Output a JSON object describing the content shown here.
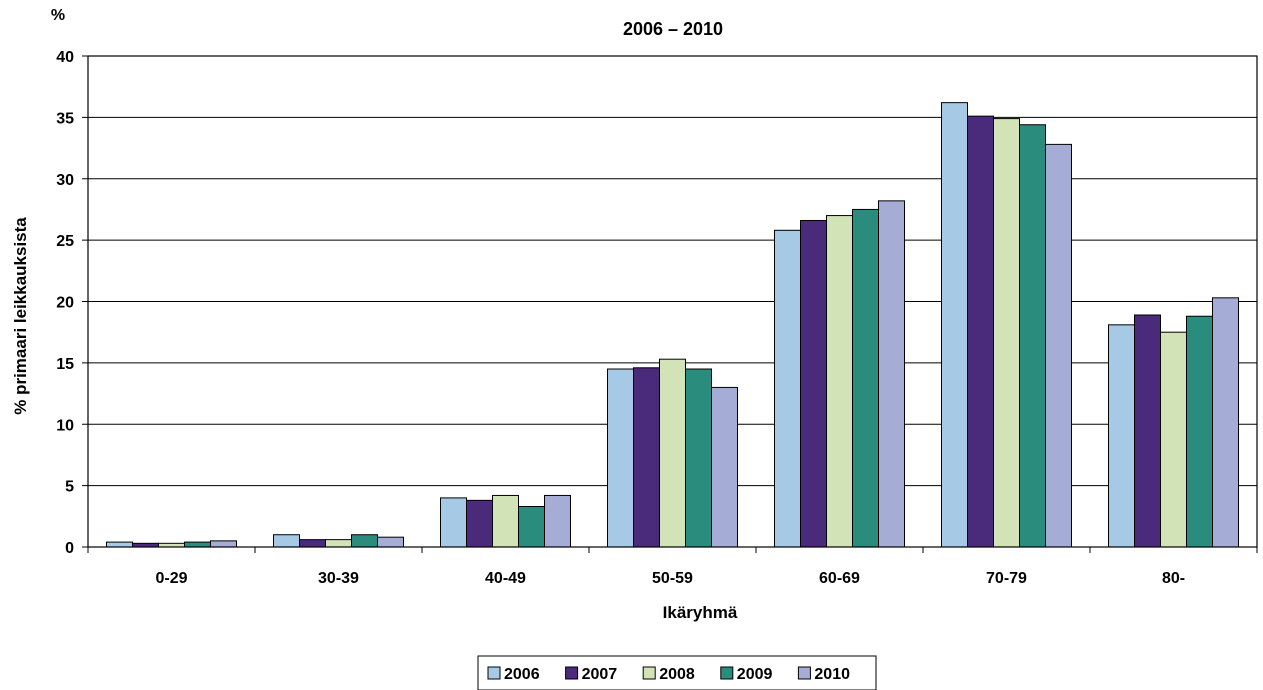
{
  "chart_data": {
    "type": "bar",
    "title": "2006 – 2010",
    "unit_label": "%",
    "xlabel": "Ikäryhmä",
    "ylabel": "% primaari leikkauksista",
    "ylim": [
      0,
      40
    ],
    "ytick_step": 5,
    "yticks": [
      "0",
      "5",
      "10",
      "15",
      "20",
      "25",
      "30",
      "35",
      "40"
    ],
    "grid": true,
    "legend_position": "bottom",
    "categories": [
      "0-29",
      "30-39",
      "40-49",
      "50-59",
      "60-69",
      "70-79",
      "80-"
    ],
    "series": [
      {
        "name": "2006",
        "color": "#a6cae6",
        "values": [
          0.4,
          1.0,
          4.0,
          14.5,
          25.8,
          36.2,
          18.1
        ]
      },
      {
        "name": "2007",
        "color": "#4a2a7a",
        "values": [
          0.3,
          0.6,
          3.8,
          14.6,
          26.6,
          35.1,
          18.9
        ]
      },
      {
        "name": "2008",
        "color": "#d3e3b8",
        "values": [
          0.3,
          0.6,
          4.2,
          15.3,
          27.0,
          34.9,
          17.5
        ]
      },
      {
        "name": "2009",
        "color": "#2a8c7c",
        "values": [
          0.4,
          1.0,
          3.3,
          14.5,
          27.5,
          34.4,
          18.8
        ]
      },
      {
        "name": "2010",
        "color": "#a5acd6",
        "values": [
          0.5,
          0.8,
          4.2,
          13.0,
          28.2,
          32.8,
          20.3
        ]
      }
    ]
  }
}
